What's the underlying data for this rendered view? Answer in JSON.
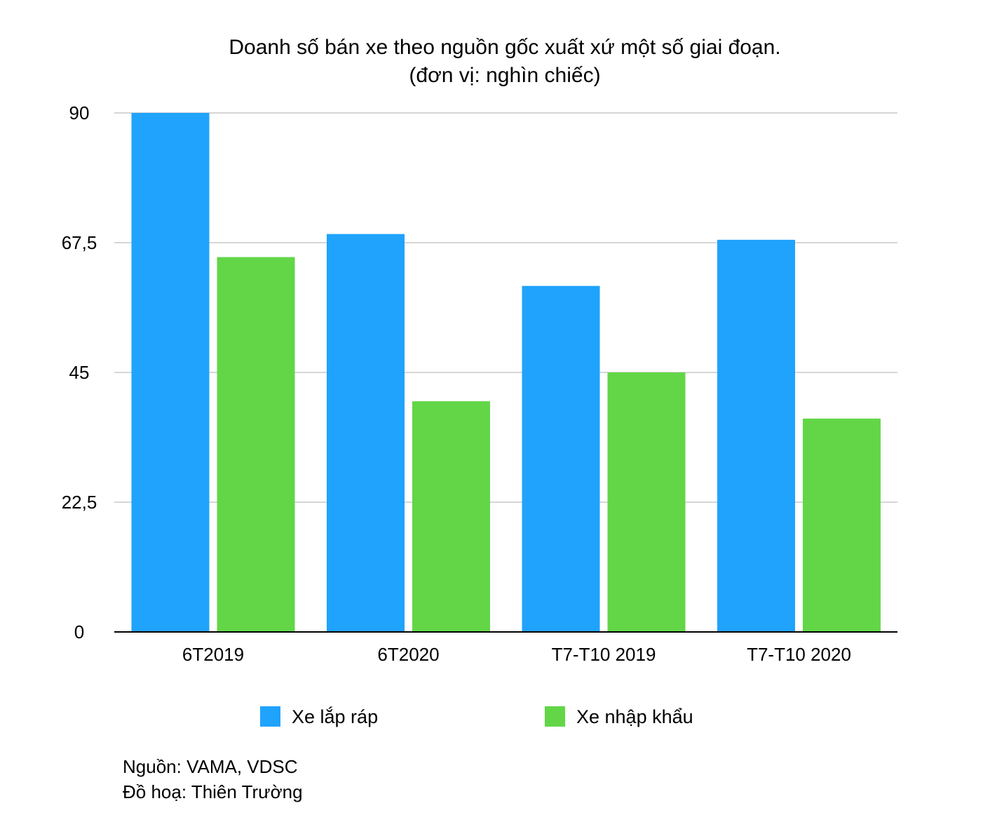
{
  "chart_data": {
    "type": "bar",
    "title": "Doanh số bán xe theo nguồn gốc xuất xứ một số giai đoạn.",
    "subtitle": "(đơn vị: nghìn chiếc)",
    "categories": [
      "6T2019",
      "6T2020",
      "T7-T10 2019",
      "T7-T10 2020"
    ],
    "series": [
      {
        "name": "Xe lắp ráp",
        "color": "#1FA3FC",
        "values": [
          90,
          69,
          60,
          68
        ]
      },
      {
        "name": "Xe nhập khẩu",
        "color": "#62D647",
        "values": [
          65,
          40,
          45,
          37
        ]
      }
    ],
    "ylim": [
      0,
      90
    ],
    "yticks": [
      0,
      22.5,
      45,
      67.5,
      90
    ],
    "ytick_labels": [
      "0",
      "22,5",
      "45",
      "67,5",
      "90"
    ],
    "grid": true,
    "legend_position": "bottom",
    "xlabel": "",
    "ylabel": ""
  },
  "footer": {
    "source": "Nguồn: VAMA, VDSC",
    "graphics": "Đồ hoạ: Thiên Trường"
  }
}
